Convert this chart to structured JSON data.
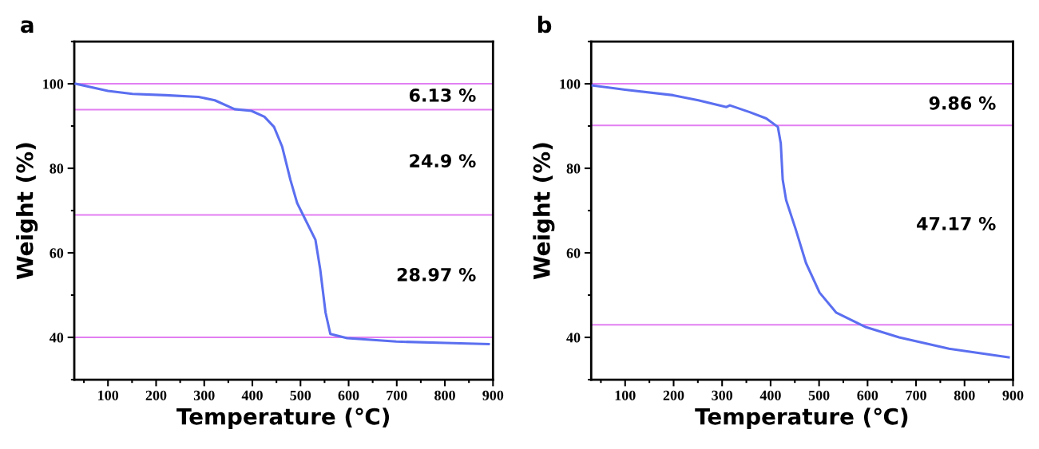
{
  "chart_data": [
    {
      "type": "line",
      "title": "a",
      "xlabel": "Temperature (℃)",
      "ylabel": "Weight (%)",
      "xlim": [
        30,
        900
      ],
      "ylim": [
        30,
        110
      ],
      "xticks": [
        100,
        200,
        300,
        400,
        500,
        600,
        700,
        800,
        900
      ],
      "yticks": [
        40,
        60,
        80,
        100
      ],
      "grid": false,
      "legend": false,
      "marker": "none",
      "line_style": "solid",
      "series": [
        {
          "color": "#5b6ff0",
          "x": [
            33,
            100,
            151,
            220,
            288,
            322,
            363,
            398,
            425,
            445,
            462,
            479,
            493,
            507,
            531,
            541,
            552,
            562,
            597,
            699,
            802,
            891
          ],
          "values": [
            100,
            98.3,
            97.6,
            97.3,
            96.9,
            96.1,
            94,
            93.6,
            92.2,
            89.8,
            85.1,
            77.3,
            71.8,
            68.6,
            63.1,
            56.1,
            45.9,
            40.8,
            39.8,
            39,
            38.7,
            38.4
          ]
        }
      ],
      "ref_lines": [
        {
          "axis": "y",
          "value": 100,
          "color": "#e27ff2"
        },
        {
          "axis": "y",
          "value": 93.87,
          "color": "#e27ff2"
        },
        {
          "axis": "y",
          "value": 68.97,
          "color": "#e27ff2"
        },
        {
          "axis": "y",
          "value": 40,
          "color": "#e27ff2"
        }
      ],
      "annotations": [
        "6.13 %",
        "24.9 %",
        "28.97 %"
      ]
    },
    {
      "type": "line",
      "title": "b",
      "xlabel": "Temperature (℃)",
      "ylabel": "Weight (%)",
      "xlim": [
        30,
        900
      ],
      "ylim": [
        30,
        110
      ],
      "xticks": [
        100,
        200,
        300,
        400,
        500,
        600,
        700,
        800,
        900
      ],
      "yticks": [
        40,
        60,
        80,
        100
      ],
      "grid": false,
      "legend": false,
      "marker": "none",
      "line_style": "solid",
      "series": [
        {
          "color": "#5b6ff0",
          "x": [
            33,
            100,
            199,
            251,
            309,
            316,
            357,
            391,
            415,
            421,
            425,
            432,
            452,
            473,
            501,
            535,
            597,
            665,
            768,
            891
          ],
          "values": [
            99.6,
            98.6,
            97.3,
            96.1,
            94.5,
            94.9,
            93.3,
            91.8,
            89.8,
            85.9,
            77.3,
            72.5,
            65.5,
            57.6,
            50.6,
            45.9,
            42.4,
            40,
            37.3,
            35.3
          ]
        }
      ],
      "ref_lines": [
        {
          "axis": "y",
          "value": 100,
          "color": "#e27ff2"
        },
        {
          "axis": "y",
          "value": 90.14,
          "color": "#e27ff2"
        },
        {
          "axis": "y",
          "value": 42.97,
          "color": "#e27ff2"
        }
      ],
      "annotations": [
        "9.86 %",
        "47.17 %"
      ]
    }
  ]
}
